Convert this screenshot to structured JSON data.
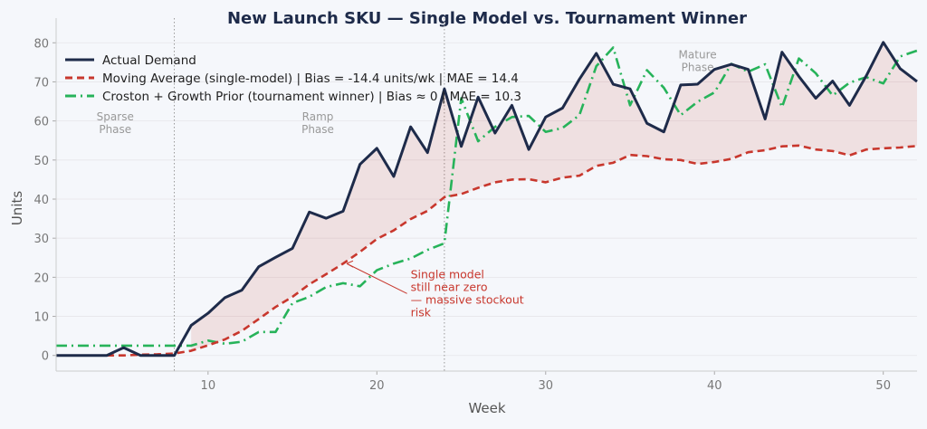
{
  "chart_data": {
    "type": "line",
    "title": "New Launch SKU — Single Model vs. Tournament Winner",
    "xlabel": "Week",
    "ylabel": "Units",
    "xlim": [
      1,
      52
    ],
    "ylim": [
      -4,
      84
    ],
    "xticks": [
      10,
      20,
      30,
      40,
      50
    ],
    "yticks": [
      0,
      10,
      20,
      30,
      40,
      50,
      60,
      70,
      80
    ],
    "grid": true,
    "legend_position": "top-left",
    "phase_dividers": [
      8,
      24
    ],
    "phases": [
      {
        "label": "Sparse\nPhase",
        "x": 4.5,
        "y": 73
      },
      {
        "label": "Ramp\nPhase",
        "x": 16.5,
        "y": 73
      },
      {
        "label": "Mature\nPhase",
        "x": 39,
        "y": 76
      }
    ],
    "annotation": {
      "text": "Single model\nstill near zero\n— massive stockout\nrisk",
      "text_x": 22,
      "text_y": 17,
      "arrow_x": 18,
      "arrow_y": 23.5,
      "color": "#c8372d"
    },
    "series": [
      {
        "name": "Actual Demand",
        "color": "#1e2b4a",
        "style": "solid",
        "x": [
          1,
          2,
          3,
          4,
          5,
          6,
          7,
          8,
          9,
          10,
          11,
          12,
          13,
          14,
          15,
          16,
          17,
          18,
          19,
          20,
          21,
          22,
          23,
          24,
          25,
          26,
          27,
          28,
          29,
          30,
          31,
          32,
          33,
          34,
          35,
          36,
          37,
          38,
          39,
          40,
          41,
          42,
          43,
          44,
          45,
          46,
          47,
          48,
          49,
          50,
          51,
          52
        ],
        "values": [
          0,
          0,
          0,
          0,
          2,
          0,
          0,
          0,
          7.7,
          10.8,
          14.8,
          16.7,
          22.7,
          25.1,
          27.4,
          36.7,
          35.1,
          36.9,
          48.9,
          53,
          45.8,
          58.5,
          51.9,
          68.2,
          53.5,
          66.1,
          56.9,
          64,
          52.7,
          61,
          63.3,
          70.7,
          77.3,
          69.4,
          68.2,
          59.4,
          57.2,
          69.2,
          69.4,
          73.2,
          74.5,
          73.2,
          60.5,
          77.6,
          71.4,
          65.8,
          70.2,
          64,
          71.6,
          80.1,
          73.4,
          70.1
        ]
      },
      {
        "name": "Moving Average (single-model)  |  Bias = -14.4 units/wk  |  MAE = 14.4",
        "color": "#c8372d",
        "style": "dashed",
        "x": [
          4,
          5,
          6,
          7,
          8,
          9,
          10,
          11,
          12,
          13,
          14,
          15,
          16,
          17,
          18,
          19,
          20,
          21,
          22,
          23,
          24,
          25,
          26,
          27,
          28,
          29,
          30,
          31,
          32,
          33,
          34,
          35,
          36,
          37,
          38,
          39,
          40,
          41,
          42,
          43,
          44,
          45,
          46,
          47,
          48,
          49,
          50,
          51,
          52
        ],
        "values": [
          0,
          0,
          0.2,
          0.3,
          0.5,
          1.2,
          2.6,
          4.1,
          6.3,
          9.3,
          12.4,
          15,
          18.2,
          20.8,
          23.5,
          26.5,
          29.8,
          32,
          34.9,
          37,
          40.5,
          41.3,
          42.9,
          44.3,
          45,
          45.1,
          44.3,
          45.5,
          46,
          48.5,
          49.3,
          51.3,
          51,
          50.2,
          50,
          49,
          49.5,
          50.3,
          52,
          52.5,
          53.5,
          53.7,
          52.7,
          52.3,
          51.2,
          52.7,
          53,
          53.2,
          53.6
        ]
      },
      {
        "name": "Croston + Growth Prior (tournament winner)  |  Bias ≈ 0  |  MAE = 10.3",
        "color": "#27b35a",
        "style": "dashdot",
        "x": [
          1,
          2,
          3,
          4,
          5,
          6,
          7,
          8,
          9,
          10,
          11,
          12,
          13,
          14,
          15,
          16,
          17,
          18,
          19,
          20,
          21,
          22,
          23,
          24,
          25,
          26,
          27,
          28,
          29,
          30,
          31,
          32,
          33,
          34,
          35,
          36,
          37,
          38,
          39,
          40,
          41,
          42,
          43,
          44,
          45,
          46,
          47,
          48,
          49,
          50,
          51,
          52
        ],
        "values": [
          2.5,
          2.5,
          2.5,
          2.5,
          2.5,
          2.5,
          2.5,
          2.5,
          2.5,
          3.8,
          3,
          3.5,
          6,
          6,
          13.4,
          15,
          17.5,
          18.5,
          17.7,
          21.8,
          23.5,
          24.8,
          27,
          28.7,
          65.8,
          54.8,
          58.5,
          61,
          61.3,
          57.2,
          58.2,
          61.5,
          74,
          78.8,
          64,
          73,
          68.5,
          61.5,
          64.9,
          67.3,
          74.6,
          72.6,
          74.5,
          63.5,
          76,
          72.2,
          66.5,
          69.8,
          71.2,
          69.6,
          76.5,
          78
        ]
      }
    ]
  }
}
